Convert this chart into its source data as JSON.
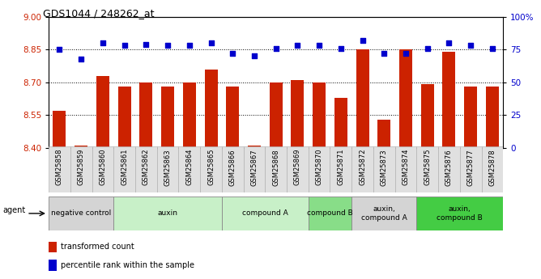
{
  "title": "GDS1044 / 248262_at",
  "samples": [
    "GSM25858",
    "GSM25859",
    "GSM25860",
    "GSM25861",
    "GSM25862",
    "GSM25863",
    "GSM25864",
    "GSM25865",
    "GSM25866",
    "GSM25867",
    "GSM25868",
    "GSM25869",
    "GSM25870",
    "GSM25871",
    "GSM25872",
    "GSM25873",
    "GSM25874",
    "GSM25875",
    "GSM25876",
    "GSM25877",
    "GSM25878"
  ],
  "bar_values": [
    8.57,
    8.41,
    8.73,
    8.68,
    8.7,
    8.68,
    8.7,
    8.76,
    8.68,
    8.41,
    8.7,
    8.71,
    8.7,
    8.63,
    8.85,
    8.53,
    8.85,
    8.69,
    8.84,
    8.68,
    8.68
  ],
  "dot_values": [
    75,
    68,
    80,
    78,
    79,
    78,
    78,
    80,
    72,
    70,
    76,
    78,
    78,
    76,
    82,
    72,
    72,
    76,
    80,
    78,
    76
  ],
  "ylim_left": [
    8.4,
    9.0
  ],
  "ylim_right": [
    0,
    100
  ],
  "yticks_left": [
    8.4,
    8.55,
    8.7,
    8.85,
    9.0
  ],
  "yticks_right": [
    0,
    25,
    50,
    75,
    100
  ],
  "ytick_right_labels": [
    "0",
    "25",
    "50",
    "75",
    "100%"
  ],
  "hlines": [
    8.55,
    8.7,
    8.85
  ],
  "bar_color": "#cc2200",
  "dot_color": "#0000cc",
  "groups": [
    {
      "label": "negative control",
      "start": 0,
      "end": 3,
      "color": "#d4d4d4"
    },
    {
      "label": "auxin",
      "start": 3,
      "end": 8,
      "color": "#c8f0c8"
    },
    {
      "label": "compound A",
      "start": 8,
      "end": 12,
      "color": "#c8f0c8"
    },
    {
      "label": "compound B",
      "start": 12,
      "end": 14,
      "color": "#88dd88"
    },
    {
      "label": "auxin,\ncompound A",
      "start": 14,
      "end": 17,
      "color": "#d4d4d4"
    },
    {
      "label": "auxin,\ncompound B",
      "start": 17,
      "end": 21,
      "color": "#44cc44"
    }
  ],
  "legend_bar_label": "transformed count",
  "legend_dot_label": "percentile rank within the sample",
  "agent_label": "agent"
}
